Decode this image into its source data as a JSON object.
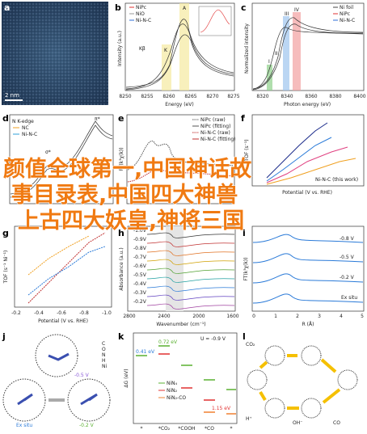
{
  "overlay": [
    "颜值全球第一,中国神话故",
    "事目录表,中国四大神兽",
    "上古四大妖皇,神将三国"
  ],
  "panels": {
    "a": {
      "label": "a",
      "scale": "2 nm"
    },
    "b": {
      "label": "b",
      "legend": [
        "NiPc",
        "NiO",
        "Ni-N-C"
      ],
      "xlabel": "Energy (eV)",
      "ylabel": "Intensity (a.u.)",
      "xticks": [
        "8250",
        "8255",
        "8260",
        "8265",
        "8270",
        "8275"
      ],
      "annotations": [
        "Kβ",
        "K",
        "A"
      ]
    },
    "c": {
      "label": "c",
      "legend": [
        "Ni foil",
        "NiPc",
        "Ni-N-C"
      ],
      "xlabel": "Photon energy (eV)",
      "ylabel": "Normalized intensity",
      "xticks": [
        "8320",
        "8340",
        "8360",
        "8380",
        "8400"
      ],
      "annotations": [
        "I",
        "II",
        "III",
        "IV"
      ]
    },
    "d": {
      "label": "d",
      "title": "N K-edge",
      "legend": [
        "NC",
        "Ni-N-C"
      ],
      "annotations": [
        "π*",
        "σ*"
      ]
    },
    "e": {
      "label": "e",
      "legend": [
        "NiPc (raw)",
        "NiPc (fitting)",
        "Ni-N-C (raw)",
        "Ni-N-C (fitting)"
      ],
      "ylabel": "FT(k³χ(k))"
    },
    "f": {
      "label": "f",
      "legend": [
        "Ni-N-C (this work)"
      ],
      "ylabel": "TOF (s⁻¹)",
      "xlabel": "Potential (V vs. RHE)"
    },
    "g": {
      "label": "g",
      "xticks": [
        "-0.2",
        "-0.4",
        "-0.6",
        "-0.8",
        "-1.0"
      ],
      "xlabel": "Potential (V vs. RHE)",
      "ylabel": "TOF (s⁻¹ Ni⁻¹)"
    },
    "h": {
      "label": "h",
      "labels": [
        "-1.0V",
        "-0.9V",
        "-0.8V",
        "-0.7V",
        "-0.6V",
        "-0.5V",
        "-0.4V",
        "-0.3V",
        "-0.2V"
      ],
      "xticks": [
        "2800",
        "2400",
        "2000",
        "1600"
      ],
      "xlabel": "Wavenumber (cm⁻¹)",
      "ylabel": "Absorbance (a.u.)"
    },
    "i": {
      "label": "i",
      "labels": [
        "-0.8 V",
        "-0.5 V",
        "-0.2 V",
        "Ex situ"
      ],
      "xticks": [
        "0",
        "1",
        "2",
        "3",
        "4",
        "5"
      ],
      "xlabel": "R (Å)",
      "ylabel": "FT(k³χ(k))"
    },
    "j": {
      "label": "j",
      "labels": [
        "Ex situ",
        "-0.5 V",
        "-0.2 V"
      ],
      "legend": [
        "C",
        "O",
        "N",
        "H",
        "Ni"
      ]
    },
    "k": {
      "label": "k",
      "title": "U = -0.9 V",
      "annotations": [
        "0.41 eV",
        "0.72 eV",
        "1.15 eV"
      ],
      "legend": [
        "NiN₄",
        "NiN₂",
        "NiN₂-CO"
      ],
      "xticks": [
        "*",
        "*CO₂",
        "*COOH",
        "*CO",
        "*"
      ],
      "ylabel": "ΔG (eV)"
    },
    "l": {
      "label": "l",
      "labels": [
        "CO₂",
        "H⁺",
        "OH⁻",
        "CO"
      ]
    }
  }
}
